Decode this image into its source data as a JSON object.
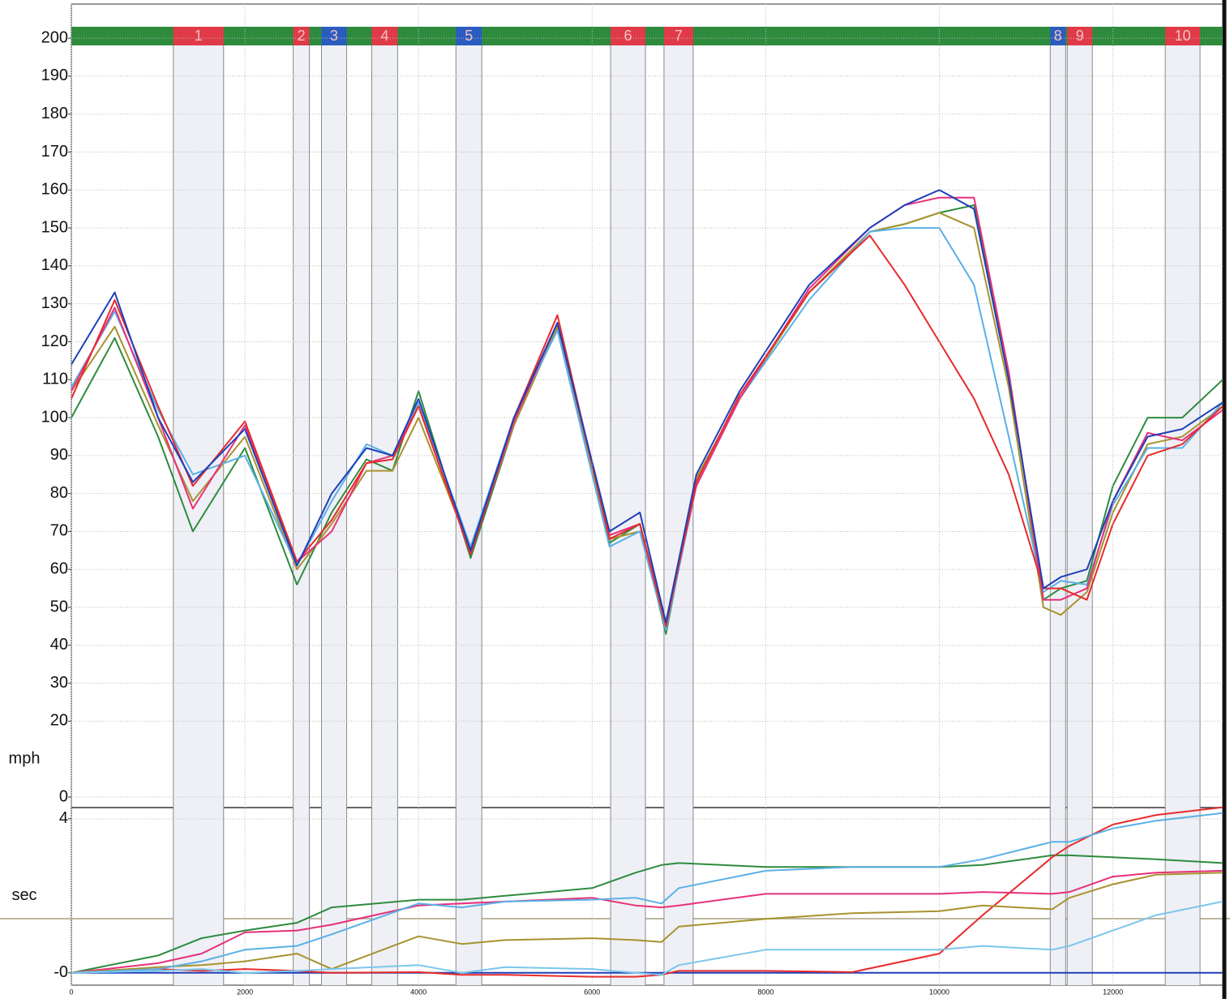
{
  "chart_data": [
    {
      "type": "line",
      "ylabel": "mph",
      "xlim": [
        0,
        13265
      ],
      "ylim": [
        0,
        209
      ],
      "yticks": [
        0,
        20,
        30,
        40,
        50,
        60,
        70,
        80,
        90,
        100,
        110,
        120,
        130,
        140,
        150,
        160,
        170,
        180,
        190,
        200
      ],
      "grid": true,
      "corners": [
        {
          "label": "1",
          "start": 1175,
          "end": 1754,
          "color": "#e03a48"
        },
        {
          "label": "2",
          "start": 2556,
          "end": 2742,
          "color": "#e03a48"
        },
        {
          "label": "3",
          "start": 2882,
          "end": 3172,
          "color": "#2a5cc0"
        },
        {
          "label": "4",
          "start": 3461,
          "end": 3759,
          "color": "#e03a48"
        },
        {
          "label": "5",
          "start": 4431,
          "end": 4729,
          "color": "#2a5cc0"
        },
        {
          "label": "6",
          "start": 6213,
          "end": 6614,
          "color": "#e03a48"
        },
        {
          "label": "7",
          "start": 6828,
          "end": 7164,
          "color": "#e03a48"
        },
        {
          "label": "8",
          "start": 11278,
          "end": 11455,
          "color": "#2a5cc0"
        },
        {
          "label": "9",
          "start": 11474,
          "end": 11763,
          "color": "#e03a48"
        },
        {
          "label": "10",
          "start": 12603,
          "end": 13004,
          "color": "#e03a48"
        }
      ],
      "x": [
        0,
        500,
        1000,
        1400,
        2000,
        2600,
        3000,
        3400,
        3700,
        4000,
        4600,
        5100,
        5600,
        6200,
        6550,
        6850,
        7200,
        7700,
        8500,
        9200,
        9600,
        10000,
        10400,
        10800,
        11200,
        11400,
        11700,
        12000,
        12400,
        12800,
        13265
      ],
      "series": [
        {
          "color": "#2e8b3e",
          "values": [
            100,
            121,
            95,
            70,
            92,
            56,
            75,
            89,
            86,
            107,
            63,
            98,
            124,
            67,
            72,
            43,
            84,
            105,
            133,
            149,
            151,
            154,
            156,
            112,
            52,
            55,
            57,
            82,
            100,
            100,
            110
          ]
        },
        {
          "color": "#a8922e",
          "values": [
            107,
            124,
            98,
            78,
            95,
            60,
            72,
            86,
            86,
            100,
            65,
            98,
            124,
            68,
            70,
            44,
            84,
            105,
            133,
            149,
            151,
            154,
            150,
            108,
            50,
            48,
            54,
            75,
            93,
            95,
            103
          ]
        },
        {
          "color": "#5ab0e6",
          "values": [
            108,
            128,
            102,
            85,
            90,
            61,
            78,
            93,
            90,
            104,
            66,
            100,
            123,
            66,
            70,
            44,
            82,
            105,
            131,
            149,
            150,
            150,
            135,
            95,
            54,
            57,
            56,
            77,
            92,
            92,
            104
          ]
        },
        {
          "color": "#e8307a",
          "values": [
            107,
            129,
            100,
            76,
            98,
            62,
            70,
            88,
            90,
            103,
            64,
            99,
            125,
            69,
            72,
            46,
            82,
            105,
            134,
            150,
            156,
            158,
            158,
            112,
            52,
            52,
            55,
            78,
            96,
            94,
            102
          ]
        },
        {
          "color": "#e82a2a",
          "values": [
            105,
            131,
            103,
            82,
            99,
            62,
            73,
            88,
            89,
            103,
            64,
            100,
            127,
            68,
            72,
            45,
            83,
            106,
            133,
            148,
            135,
            120,
            105,
            85,
            55,
            55,
            52,
            72,
            90,
            93,
            103
          ]
        },
        {
          "color": "#1f3fb8",
          "values": [
            114,
            133,
            100,
            83,
            97,
            61,
            80,
            92,
            90,
            105,
            65,
            100,
            125,
            70,
            75,
            46,
            85,
            107,
            135,
            150,
            156,
            160,
            155,
            110,
            55,
            58,
            60,
            78,
            95,
            97,
            104
          ]
        }
      ]
    },
    {
      "type": "line",
      "ylabel": "sec",
      "xlim": [
        0,
        13265
      ],
      "ylim": [
        -0.32,
        4.27
      ],
      "yticks": [
        {
          "value": 0,
          "label": "-0"
        },
        4
      ],
      "xticks": [
        0,
        2000,
        4000,
        6000,
        8000,
        10000,
        12000
      ],
      "grid": true,
      "x": [
        0,
        1000,
        1500,
        2000,
        2600,
        3000,
        4000,
        4500,
        5000,
        6000,
        6500,
        6800,
        7000,
        8000,
        9000,
        10000,
        10500,
        11300,
        11500,
        12000,
        12500,
        13265
      ],
      "series": [
        {
          "color": "#1f3fb8",
          "values": [
            0,
            0,
            0,
            0,
            0,
            0,
            0,
            0,
            0,
            0,
            0,
            0,
            0,
            0,
            0,
            0,
            0,
            0,
            0,
            0,
            0,
            0
          ]
        },
        {
          "color": "#2e8b3e",
          "values": [
            0,
            0.45,
            0.9,
            1.1,
            1.3,
            1.7,
            1.9,
            1.9,
            2.0,
            2.2,
            2.6,
            2.8,
            2.85,
            2.75,
            2.75,
            2.75,
            2.8,
            3.05,
            3.05,
            3.0,
            2.95,
            2.85
          ]
        },
        {
          "color": "#e82a2a",
          "values": [
            0,
            0.1,
            0.05,
            0.1,
            0.05,
            0,
            0.02,
            -0.05,
            -0.05,
            -0.1,
            -0.1,
            -0.05,
            0.05,
            0.05,
            0.02,
            0.5,
            1.5,
            3.0,
            3.3,
            3.85,
            4.1,
            4.3
          ]
        },
        {
          "color": "#e8307a",
          "values": [
            0,
            0.25,
            0.5,
            1.05,
            1.1,
            1.25,
            1.75,
            1.8,
            1.85,
            1.95,
            1.75,
            1.7,
            1.75,
            2.05,
            2.05,
            2.05,
            2.1,
            2.05,
            2.1,
            2.5,
            2.6,
            2.65
          ]
        },
        {
          "color": "#a8922e",
          "values": [
            0,
            0.15,
            0.2,
            0.3,
            0.5,
            0.1,
            0.95,
            0.75,
            0.85,
            0.9,
            0.85,
            0.8,
            1.2,
            1.4,
            1.55,
            1.6,
            1.75,
            1.65,
            1.95,
            2.3,
            2.55,
            2.6
          ]
        },
        {
          "color": "#5ab0e6",
          "values": [
            0,
            0.1,
            0.3,
            0.6,
            0.7,
            1.0,
            1.8,
            1.7,
            1.85,
            1.9,
            1.95,
            1.8,
            2.2,
            2.65,
            2.75,
            2.75,
            2.95,
            3.4,
            3.4,
            3.75,
            3.95,
            4.15
          ]
        },
        {
          "color": "#7cc6ec",
          "values": [
            0,
            0.05,
            0.1,
            0,
            0.05,
            0.1,
            0.2,
            0,
            0.15,
            0.1,
            0,
            -0.05,
            0.2,
            0.6,
            0.6,
            0.6,
            0.7,
            0.6,
            0.7,
            1.1,
            1.5,
            1.85
          ]
        }
      ]
    }
  ]
}
